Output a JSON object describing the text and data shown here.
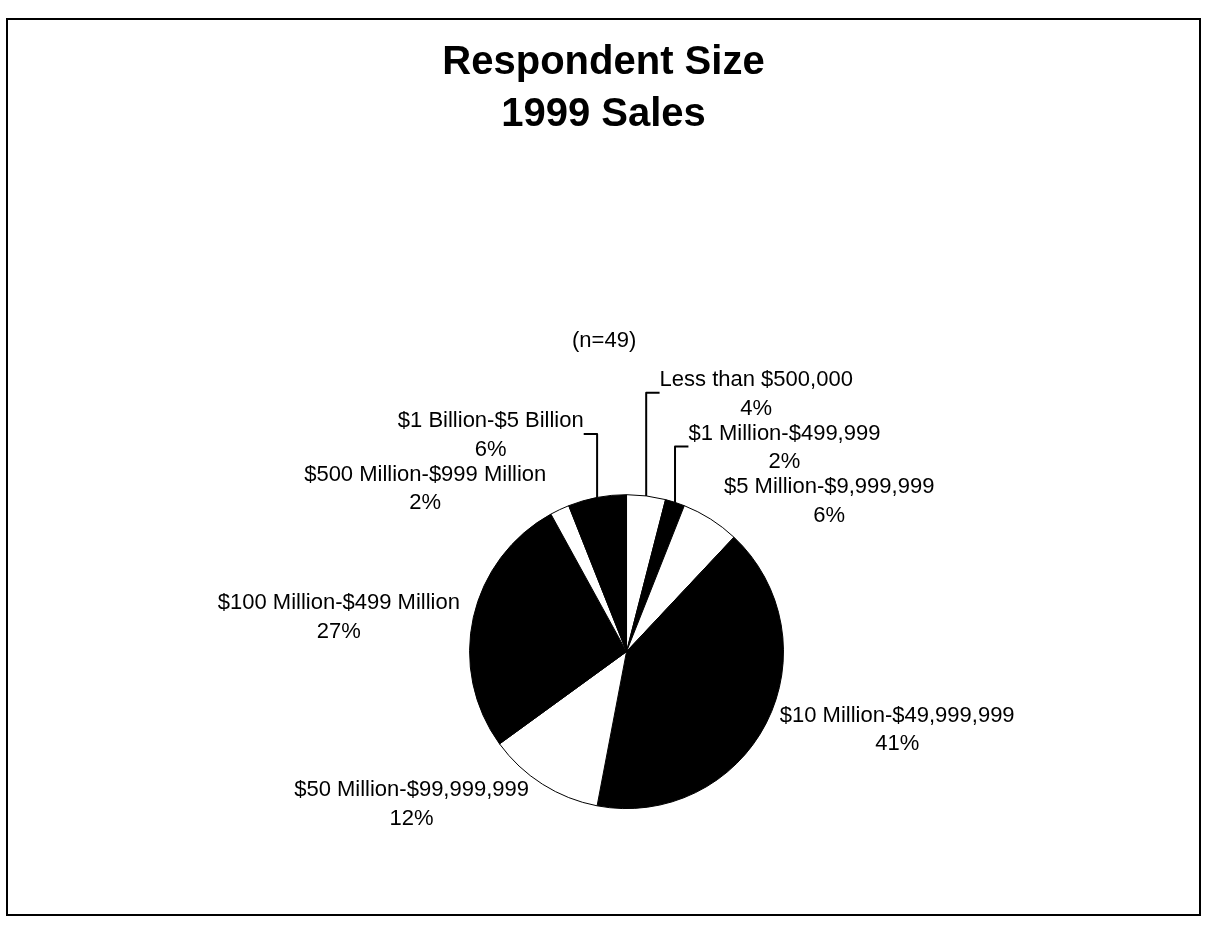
{
  "chart_data": {
    "type": "pie",
    "title": "Respondent Size\n1999 Sales",
    "subtitle": "(n=49)",
    "categories": [
      "Less than $500,000",
      "$1 Million-$499,999",
      "$5 Million-$9,999,999",
      "$10 Million-$49,999,999",
      "$50 Million-$99,999,999",
      "$100 Million-$499 Million",
      "$500 Million-$999 Million",
      "$1 Billion-$5 Billion"
    ],
    "values": [
      4,
      2,
      6,
      41,
      12,
      27,
      2,
      6
    ],
    "value_labels": [
      "4%",
      "2%",
      "6%",
      "41%",
      "12%",
      "27%",
      "2%",
      "6%"
    ],
    "colors": [
      "#ffffff",
      "#000000",
      "#ffffff",
      "#000000",
      "#ffffff",
      "#000000",
      "#ffffff",
      "#000000"
    ],
    "legend": false
  }
}
